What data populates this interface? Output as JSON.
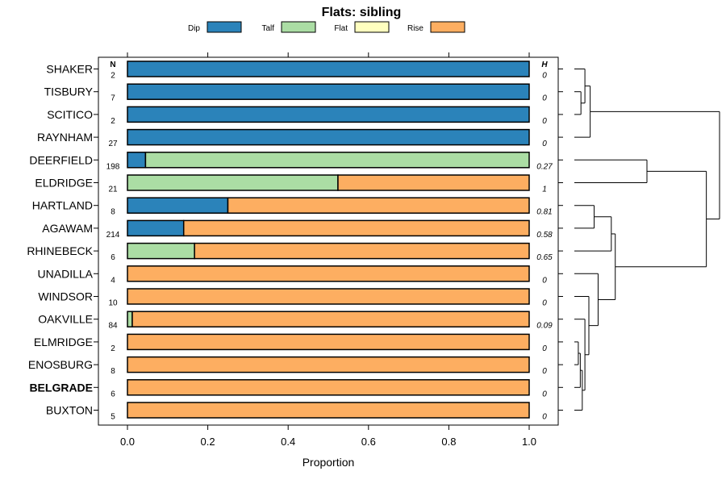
{
  "chart_data": {
    "type": "bar",
    "orientation": "horizontal",
    "stacked": true,
    "title": "Flats: sibling",
    "xlabel": "Proportion",
    "xlim": [
      0,
      1
    ],
    "xticks": [
      "0.0",
      "0.2",
      "0.4",
      "0.6",
      "0.8",
      "1.0"
    ],
    "n_header": "N",
    "h_header": "H",
    "legend_position": "top",
    "legend": [
      {
        "name": "Dip",
        "color": "#2b83ba"
      },
      {
        "name": "Talf",
        "color": "#abdda4"
      },
      {
        "name": "Flat",
        "color": "#ffffbf"
      },
      {
        "name": "Rise",
        "color": "#fdae61"
      }
    ],
    "categories": [
      "SHAKER",
      "TISBURY",
      "SCITICO",
      "RAYNHAM",
      "DEERFIELD",
      "ELDRIDGE",
      "HARTLAND",
      "AGAWAM",
      "RHINEBECK",
      "UNADILLA",
      "WINDSOR",
      "OAKVILLE",
      "ELMRIDGE",
      "ENOSBURG",
      "BELGRADE",
      "BUXTON"
    ],
    "bold_category": "BELGRADE",
    "n": [
      "2",
      "7",
      "2",
      "27",
      "198",
      "21",
      "8",
      "214",
      "6",
      "4",
      "10",
      "84",
      "2",
      "8",
      "6",
      "5"
    ],
    "h": [
      "0",
      "0",
      "0",
      "0",
      "0.27",
      "1",
      "0.81",
      "0.58",
      "0.65",
      "0",
      "0",
      "0.09",
      "0",
      "0",
      "0",
      "0"
    ],
    "series": [
      {
        "name": "Dip",
        "values": [
          1,
          1,
          1,
          1,
          0.045,
          0,
          0.25,
          0.14,
          0,
          0,
          0,
          0,
          0,
          0,
          0,
          0
        ]
      },
      {
        "name": "Talf",
        "values": [
          0,
          0,
          0,
          0,
          0.955,
          0.524,
          0,
          0,
          0.167,
          0,
          0,
          0.012,
          0,
          0,
          0,
          0
        ]
      },
      {
        "name": "Flat",
        "values": [
          0,
          0,
          0,
          0,
          0,
          0,
          0,
          0,
          0,
          0,
          0,
          0,
          0,
          0,
          0,
          0
        ]
      },
      {
        "name": "Rise",
        "values": [
          0,
          0,
          0,
          0,
          0,
          0.476,
          0.75,
          0.86,
          0.833,
          1,
          1,
          0.988,
          1,
          1,
          1,
          1
        ]
      }
    ],
    "dendrogram": {
      "type": "dendrogram",
      "merges": [
        {
          "a": "l1",
          "b": "l2",
          "h": 0.05
        },
        {
          "a": "m1",
          "b": "l0",
          "h": 0.08
        },
        {
          "a": "m2",
          "b": "l3",
          "h": 0.12
        },
        {
          "a": "l4",
          "b": "l5",
          "h": 0.55
        },
        {
          "a": "l6",
          "b": "l7",
          "h": 0.15
        },
        {
          "a": "m5",
          "b": "l8",
          "h": 0.28
        },
        {
          "a": "l12",
          "b": "l13",
          "h": 0.03
        },
        {
          "a": "m7",
          "b": "l14",
          "h": 0.045
        },
        {
          "a": "m8",
          "b": "l15",
          "h": 0.06
        },
        {
          "a": "m9",
          "b": "l11",
          "h": 0.08
        },
        {
          "a": "m10",
          "b": "l10",
          "h": 0.11
        },
        {
          "a": "m11",
          "b": "l9",
          "h": 0.18
        },
        {
          "a": "m6",
          "b": "m12",
          "h": 0.31
        },
        {
          "a": "m4",
          "b": "m13",
          "h": 1.0
        },
        {
          "a": "m3",
          "b": "m14",
          "h": 1.1
        }
      ],
      "max_height": 1.1
    }
  }
}
